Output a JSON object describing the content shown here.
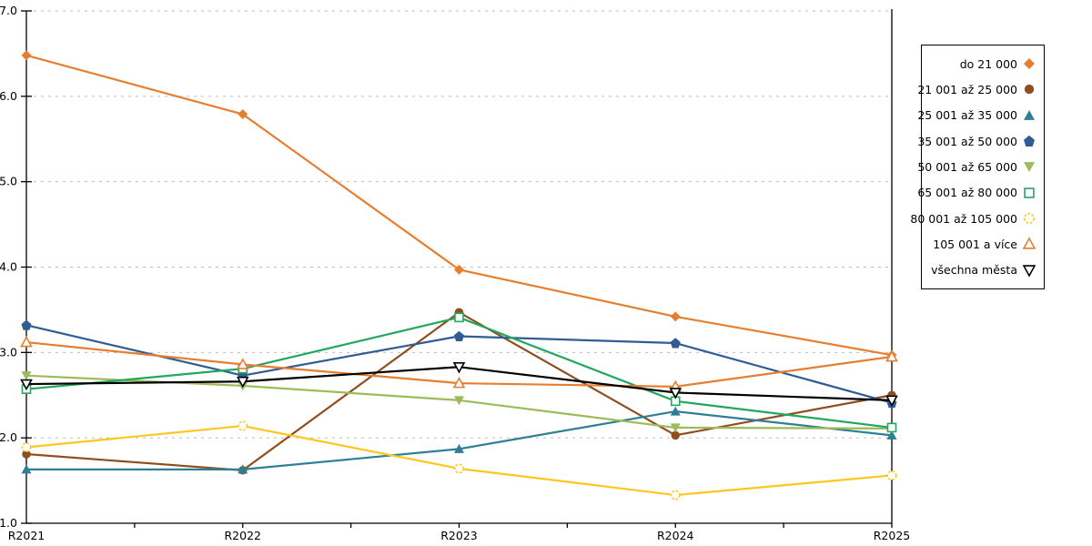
{
  "chart_data": {
    "type": "line",
    "title": "",
    "xlabel": "",
    "ylabel": "",
    "x_categories": [
      "R2021",
      "R2022",
      "R2023",
      "R2024",
      "R2025"
    ],
    "ylim": [
      1.0,
      7.0
    ],
    "ytick_labels": [
      "7.0",
      "6.0",
      "5.0",
      "4.0",
      "3.0",
      "2.0",
      "1.0"
    ],
    "ytick_values": [
      7.0,
      6.0,
      5.0,
      4.0,
      3.0,
      2.0,
      1.0
    ],
    "grid": "horizontal-dashed",
    "grid_color": "#bdbdbd",
    "axis_color": "#000000",
    "legend_position": "right",
    "series": [
      {
        "name": "do 21 000",
        "color": "#E67E30",
        "marker": "diamond",
        "style": "solid",
        "values": [
          6.48,
          5.79,
          3.97,
          3.42,
          2.97
        ]
      },
      {
        "name": "21 001 až 25 000",
        "color": "#8F4E1F",
        "marker": "circle",
        "style": "solid",
        "values": [
          1.81,
          1.62,
          3.47,
          2.03,
          2.5
        ]
      },
      {
        "name": "25 001 až 35 000",
        "color": "#2E7F95",
        "marker": "triangle-up",
        "style": "solid",
        "values": [
          1.63,
          1.63,
          1.87,
          2.31,
          2.03
        ]
      },
      {
        "name": "35 001 až 50 000",
        "color": "#315B93",
        "marker": "pentagon",
        "style": "solid",
        "values": [
          3.32,
          2.73,
          3.19,
          3.11,
          2.41
        ]
      },
      {
        "name": "50 001 až 65 000",
        "color": "#9CBB59",
        "marker": "triangle-down",
        "style": "solid",
        "values": [
          2.73,
          2.61,
          2.44,
          2.12,
          2.11
        ]
      },
      {
        "name": "65 001 až 80 000",
        "color": "#21A75F",
        "marker": "square",
        "style": "open",
        "values": [
          2.57,
          2.81,
          3.41,
          2.43,
          2.12
        ]
      },
      {
        "name": "80 001 až 105 000",
        "color": "#FFC61E",
        "marker": "circle-dashed",
        "style": "open",
        "values": [
          1.89,
          2.14,
          1.64,
          1.33,
          1.56
        ]
      },
      {
        "name": "105 001 a více",
        "color": "#E67E30",
        "marker": "triangle-up",
        "style": "open",
        "values": [
          3.12,
          2.86,
          2.64,
          2.6,
          2.95
        ]
      },
      {
        "name": "všechna města",
        "color": "#000000",
        "marker": "triangle-down",
        "style": "open",
        "values": [
          2.63,
          2.66,
          2.83,
          2.53,
          2.44
        ]
      }
    ]
  }
}
